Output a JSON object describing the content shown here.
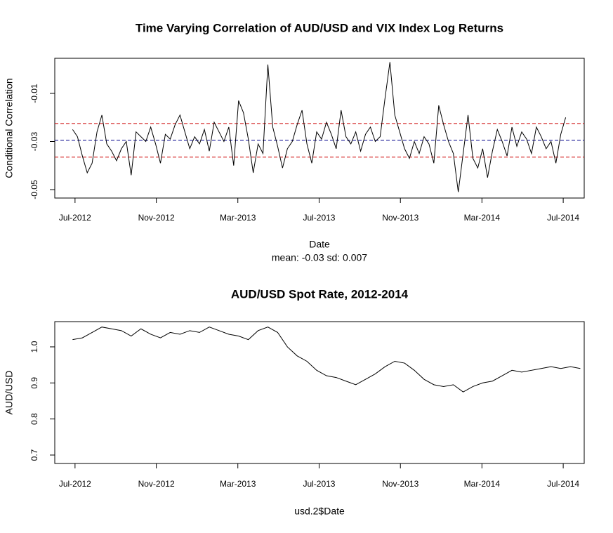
{
  "chart_data": [
    {
      "type": "line",
      "title": "Time Varying Correlation of AUD/USD and VIX Index Log Returns",
      "x_label": "Date",
      "subtitle": "mean: -0.03 sd: 0.007",
      "y_label": "Conditional Correlation",
      "xlim": [
        2012.417,
        2014.586
      ],
      "xticks": [
        {
          "value": 2012.5,
          "label": "Jul-2012"
        },
        {
          "value": 2012.833,
          "label": "Nov-2012"
        },
        {
          "value": 2013.167,
          "label": "Mar-2013"
        },
        {
          "value": 2013.5,
          "label": "Jul-2013"
        },
        {
          "value": 2013.833,
          "label": "Nov-2013"
        },
        {
          "value": 2014.167,
          "label": "Mar-2014"
        },
        {
          "value": 2014.5,
          "label": "Jul-2014"
        }
      ],
      "ylim": [
        -0.0535,
        0.0046
      ],
      "yticks": [
        -0.05,
        -0.03,
        -0.01
      ],
      "reference_lines": [
        {
          "value": -0.0295,
          "color": "#00008b"
        },
        {
          "value": -0.0225,
          "color": "#cd0000"
        },
        {
          "value": -0.0365,
          "color": "#cd0000"
        }
      ],
      "series": [
        {
          "color": "#000000",
          "x": [
            2012.49,
            2012.51,
            2012.53,
            2012.55,
            2012.57,
            2012.59,
            2012.61,
            2012.63,
            2012.65,
            2012.67,
            2012.69,
            2012.71,
            2012.73,
            2012.75,
            2012.77,
            2012.79,
            2012.81,
            2012.83,
            2012.85,
            2012.87,
            2012.89,
            2012.91,
            2012.93,
            2012.95,
            2012.97,
            2012.99,
            2013.01,
            2013.03,
            2013.05,
            2013.07,
            2013.09,
            2013.11,
            2013.13,
            2013.15,
            2013.17,
            2013.19,
            2013.21,
            2013.23,
            2013.25,
            2013.27,
            2013.29,
            2013.31,
            2013.33,
            2013.35,
            2013.37,
            2013.39,
            2013.41,
            2013.43,
            2013.45,
            2013.47,
            2013.49,
            2013.51,
            2013.53,
            2013.55,
            2013.57,
            2013.59,
            2013.61,
            2013.63,
            2013.65,
            2013.67,
            2013.69,
            2013.71,
            2013.73,
            2013.75,
            2013.77,
            2013.79,
            2013.81,
            2013.83,
            2013.85,
            2013.87,
            2013.89,
            2013.91,
            2013.93,
            2013.95,
            2013.97,
            2013.99,
            2014.01,
            2014.03,
            2014.05,
            2014.07,
            2014.09,
            2014.11,
            2014.13,
            2014.15,
            2014.17,
            2014.19,
            2014.21,
            2014.23,
            2014.25,
            2014.27,
            2014.29,
            2014.31,
            2014.33,
            2014.35,
            2014.37,
            2014.39,
            2014.41,
            2014.43,
            2014.45,
            2014.47,
            2014.49,
            2014.51
          ],
          "values": [
            -0.025,
            -0.028,
            -0.036,
            -0.043,
            -0.039,
            -0.026,
            -0.019,
            -0.031,
            -0.034,
            -0.038,
            -0.033,
            -0.03,
            -0.044,
            -0.026,
            -0.028,
            -0.03,
            -0.024,
            -0.031,
            -0.039,
            -0.027,
            -0.029,
            -0.023,
            -0.019,
            -0.026,
            -0.033,
            -0.028,
            -0.031,
            -0.025,
            -0.034,
            -0.022,
            -0.026,
            -0.03,
            -0.024,
            -0.04,
            -0.013,
            -0.018,
            -0.029,
            -0.043,
            -0.031,
            -0.035,
            0.002,
            -0.024,
            -0.032,
            -0.041,
            -0.033,
            -0.03,
            -0.023,
            -0.017,
            -0.031,
            -0.039,
            -0.026,
            -0.029,
            -0.022,
            -0.027,
            -0.033,
            -0.017,
            -0.028,
            -0.031,
            -0.026,
            -0.034,
            -0.027,
            -0.024,
            -0.03,
            -0.028,
            -0.012,
            0.003,
            -0.019,
            -0.026,
            -0.033,
            -0.037,
            -0.03,
            -0.035,
            -0.028,
            -0.031,
            -0.039,
            -0.015,
            -0.023,
            -0.03,
            -0.035,
            -0.051,
            -0.035,
            -0.019,
            -0.037,
            -0.041,
            -0.033,
            -0.045,
            -0.034,
            -0.025,
            -0.03,
            -0.036,
            -0.024,
            -0.032,
            -0.026,
            -0.029,
            -0.035,
            -0.024,
            -0.028,
            -0.033,
            -0.03,
            -0.039,
            -0.027,
            -0.02
          ]
        }
      ]
    },
    {
      "type": "line",
      "title": "AUD/USD Spot Rate, 2012-2014",
      "x_label": "usd.2$Date",
      "y_label": "AUD/USD",
      "xlim": [
        2012.417,
        2014.586
      ],
      "xticks": [
        {
          "value": 2012.5,
          "label": "Jul-2012"
        },
        {
          "value": 2012.833,
          "label": "Nov-2012"
        },
        {
          "value": 2013.167,
          "label": "Mar-2013"
        },
        {
          "value": 2013.5,
          "label": "Jul-2013"
        },
        {
          "value": 2013.833,
          "label": "Nov-2013"
        },
        {
          "value": 2014.167,
          "label": "Mar-2014"
        },
        {
          "value": 2014.5,
          "label": "Jul-2014"
        }
      ],
      "ylim": [
        0.6766,
        1.07
      ],
      "yticks": [
        0.7,
        0.8,
        0.9,
        {
          "value": 1,
          "label": "1.0"
        }
      ],
      "series": [
        {
          "color": "#000000",
          "x": [
            2012.49,
            2012.53,
            2012.57,
            2012.61,
            2012.65,
            2012.69,
            2012.73,
            2012.77,
            2012.81,
            2012.85,
            2012.89,
            2012.93,
            2012.97,
            2013.01,
            2013.05,
            2013.09,
            2013.13,
            2013.17,
            2013.21,
            2013.25,
            2013.29,
            2013.33,
            2013.37,
            2013.41,
            2013.45,
            2013.49,
            2013.53,
            2013.57,
            2013.61,
            2013.65,
            2013.69,
            2013.73,
            2013.77,
            2013.81,
            2013.85,
            2013.89,
            2013.93,
            2013.97,
            2014.01,
            2014.05,
            2014.09,
            2014.13,
            2014.17,
            2014.21,
            2014.25,
            2014.29,
            2014.33,
            2014.37,
            2014.41,
            2014.45,
            2014.49,
            2014.53,
            2014.57
          ],
          "values": [
            1.02,
            1.025,
            1.04,
            1.055,
            1.05,
            1.045,
            1.03,
            1.05,
            1.035,
            1.025,
            1.04,
            1.035,
            1.045,
            1.04,
            1.055,
            1.045,
            1.035,
            1.03,
            1.02,
            1.045,
            1.055,
            1.04,
            1.0,
            0.975,
            0.96,
            0.935,
            0.92,
            0.915,
            0.905,
            0.895,
            0.91,
            0.925,
            0.945,
            0.96,
            0.955,
            0.935,
            0.91,
            0.895,
            0.89,
            0.895,
            0.875,
            0.89,
            0.9,
            0.905,
            0.92,
            0.935,
            0.93,
            0.935,
            0.94,
            0.945,
            0.94,
            0.945,
            0.94
          ]
        }
      ]
    }
  ]
}
